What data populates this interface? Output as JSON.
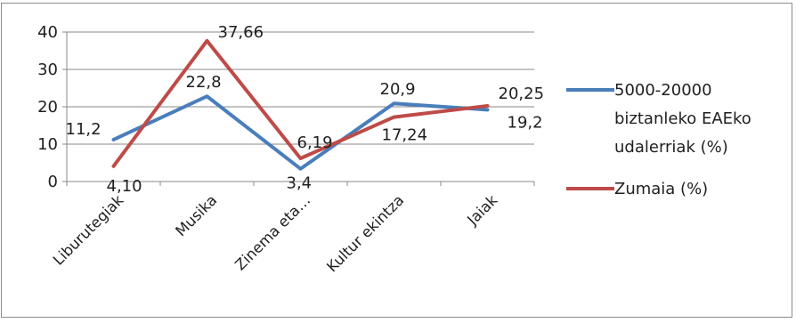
{
  "chart_data": {
    "type": "line",
    "categories": [
      "Liburutegiak",
      "Musika",
      "Zinema eta…",
      "Kultur ekintza",
      "Jaiak"
    ],
    "series": [
      {
        "name": "5000-20000 biztanleko EAEko udalerriak (%)",
        "values": [
          11.2,
          22.8,
          3.4,
          20.9,
          19.2
        ],
        "labels": [
          "11,2",
          "22,8",
          "3,4",
          "20,9",
          "19,2"
        ],
        "color": "#4a7ebb"
      },
      {
        "name": "Zumaia (%)",
        "values": [
          4.1,
          37.66,
          6.19,
          17.24,
          20.25
        ],
        "labels": [
          "4,10",
          "37,66",
          "6,19",
          "17,24",
          "20,25"
        ],
        "color": "#be4b48"
      }
    ],
    "ylim": [
      0,
      40
    ],
    "yticks": [
      "0",
      "10",
      "20",
      "30",
      "40"
    ],
    "grid": true,
    "legend_position": "right",
    "title": "",
    "xlabel": "",
    "ylabel": ""
  },
  "legend": {
    "series1_lines": [
      "5000-20000",
      "biztanleko EAEko",
      "udalerriak (%)"
    ],
    "series2_lines": [
      "Zumaia (%)"
    ]
  }
}
